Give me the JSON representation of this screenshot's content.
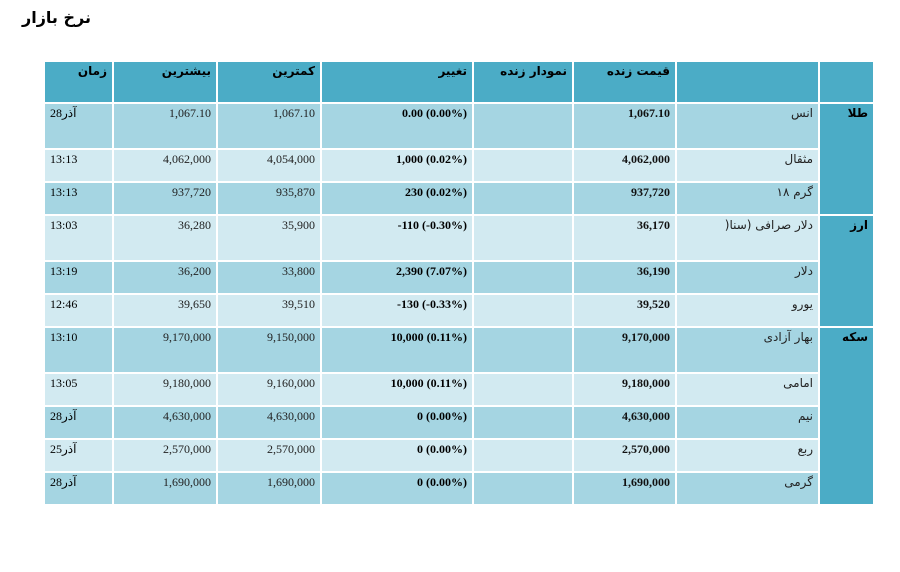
{
  "page": {
    "title": "نرخ بازار"
  },
  "table": {
    "headers": {
      "time": "زمان",
      "high": "بیشترین",
      "low": "کمترین",
      "change": "تغییر",
      "live_chart": "نمودار زنده",
      "live_price": "قیمت زنده",
      "name": "",
      "category": ""
    },
    "categories": {
      "gold": "طلا",
      "currency": "ارز",
      "coin": "سکه"
    },
    "rows": [
      {
        "time": "28آذر",
        "high": "1,067.10",
        "low": "1,067.10",
        "change": "0.00 (0.00%)",
        "chart": "",
        "price": "1,067.10",
        "name": "انس"
      },
      {
        "time": "13:13",
        "high": "4,062,000",
        "low": "4,054,000",
        "change": "1,000 (0.02%)",
        "chart": "",
        "price": "4,062,000",
        "name": "مثقال"
      },
      {
        "time": "13:13",
        "high": "937,720",
        "low": "935,870",
        "change": "230 (0.02%)",
        "chart": "",
        "price": "937,720",
        "name": "گرم ۱۸"
      },
      {
        "time": "13:03",
        "high": "36,280",
        "low": "35,900",
        "change": "-110 (-0.30%)",
        "chart": "",
        "price": "36,170",
        "name": "دلار صرافی (سنا("
      },
      {
        "time": "13:19",
        "high": "36,200",
        "low": "33,800",
        "change": "2,390 (7.07%)",
        "chart": "",
        "price": "36,190",
        "name": "دلار"
      },
      {
        "time": "12:46",
        "high": "39,650",
        "low": "39,510",
        "change": "-130 (-0.33%)",
        "chart": "",
        "price": "39,520",
        "name": "یورو"
      },
      {
        "time": "13:10",
        "high": "9,170,000",
        "low": "9,150,000",
        "change": "10,000 (0.11%)",
        "chart": "",
        "price": "9,170,000",
        "name": "بهار آزادی"
      },
      {
        "time": "13:05",
        "high": "9,180,000",
        "low": "9,160,000",
        "change": "10,000 (0.11%)",
        "chart": "",
        "price": "9,180,000",
        "name": "امامی"
      },
      {
        "time": "28آذر",
        "high": "4,630,000",
        "low": "4,630,000",
        "change": "0 (0.00%)",
        "chart": "",
        "price": "4,630,000",
        "name": "نیم"
      },
      {
        "time": "25آذر",
        "high": "2,570,000",
        "low": "2,570,000",
        "change": "0 (0.00%)",
        "chart": "",
        "price": "2,570,000",
        "name": "ربع"
      },
      {
        "time": "28آذر",
        "high": "1,690,000",
        "low": "1,690,000",
        "change": "0 (0.00%)",
        "chart": "",
        "price": "1,690,000",
        "name": "گرمی"
      }
    ]
  },
  "colors": {
    "header_bg": "#4bacc6",
    "row_odd_bg": "#a5d5e2",
    "row_even_bg": "#d2eaf1"
  }
}
